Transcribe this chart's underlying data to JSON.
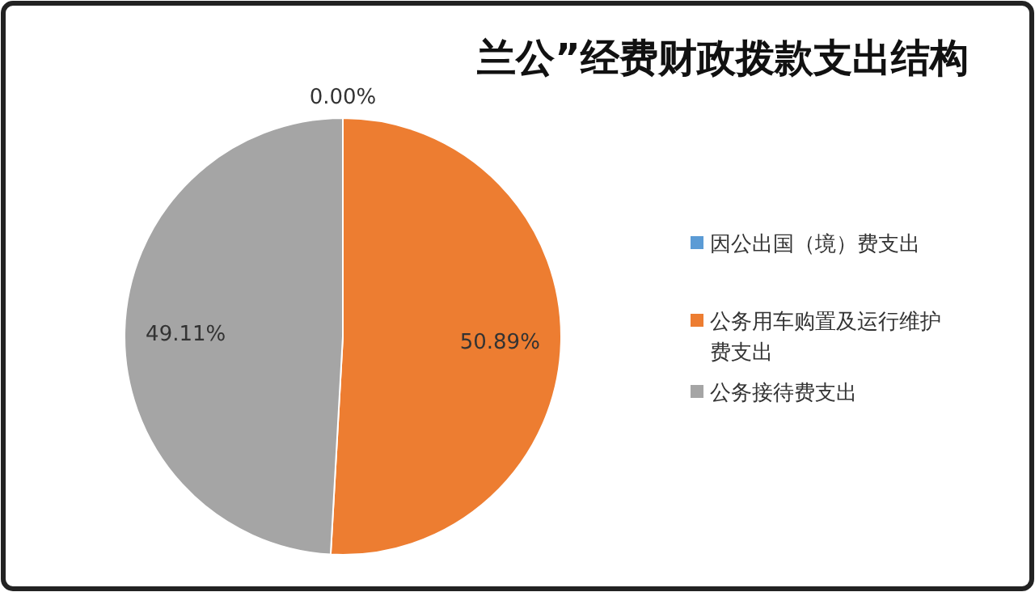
{
  "chart_data": {
    "type": "pie",
    "title": "兰公”经费财政拨款支出结构",
    "categories": [
      "因公出国（境）费支出",
      "公务用车购置及运行维护费支出",
      "公务接待费支出"
    ],
    "values": [
      0,
      50.89,
      49.11
    ],
    "colors": [
      "#5b9bd5",
      "#ed7d31",
      "#a5a5a5"
    ],
    "value_labels": [
      "0.00%",
      "50.89%",
      "49.11%"
    ],
    "legend": "right"
  }
}
